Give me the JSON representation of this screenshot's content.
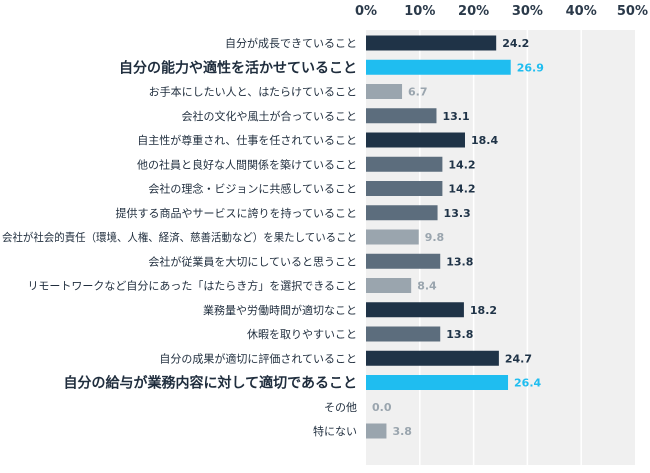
{
  "chart_data": {
    "type": "bar",
    "orientation": "horizontal",
    "title": "",
    "xlabel": "",
    "ylabel": "",
    "xlim": [
      0,
      50
    ],
    "x_ticks": [
      "0%",
      "10%",
      "20%",
      "30%",
      "40%",
      "50%"
    ],
    "grid": true,
    "legend": "none",
    "categories": [
      "自分が成長できていること",
      "自分の能力や適性を活かせていること",
      "お手本にしたい人と、はたらけていること",
      "会社の文化や風土が合っていること",
      "自主性が尊重され、仕事を任されていること",
      "他の社員と良好な人間関係を築けていること",
      "会社の理念・ビジョンに共感していること",
      "提供する商品やサービスに誇りを持っていること",
      "会社が社会的責任（環境、人権、経済、慈善活動など）を果たしていること",
      "会社が従業員を大切にしていると思うこと",
      "リモートワークなど自分にあった「はたらき方」を選択できること",
      "業務量や労働時間が適切なこと",
      "休暇を取りやすいこと",
      "自分の成果が適切に評価されていること",
      "自分の給与が業務内容に対して適切であること",
      "その他",
      "特にない"
    ],
    "values": [
      24.2,
      26.9,
      6.7,
      13.1,
      18.4,
      14.2,
      14.2,
      13.3,
      9.8,
      13.8,
      8.4,
      18.2,
      13.8,
      24.7,
      26.4,
      0.0,
      3.8
    ],
    "value_labels": [
      "24.2",
      "26.9",
      "6.7",
      "13.1",
      "18.4",
      "14.2",
      "14.2",
      "13.3",
      "9.8",
      "13.8",
      "8.4",
      "18.2",
      "13.8",
      "24.7",
      "26.4",
      "0.0",
      "3.8"
    ],
    "highlighted": [
      1,
      14
    ],
    "colors": {
      "dark": "#1f3347",
      "mid": "#5c6d7d",
      "light": "#9aa5ae",
      "highlight": "#1fbdf0",
      "plot_bg": "#f0f0f0",
      "grid": "#ffffff"
    }
  }
}
